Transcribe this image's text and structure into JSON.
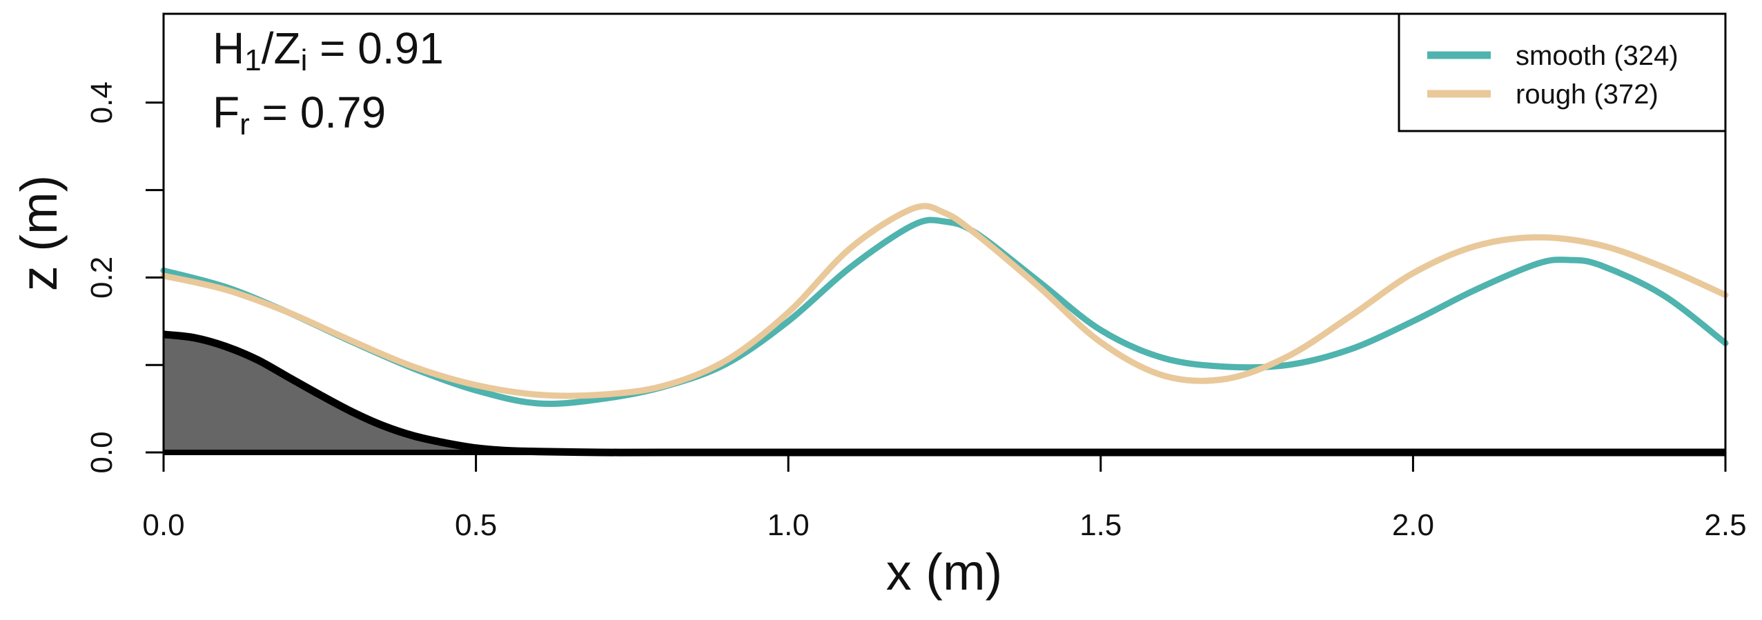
{
  "chart_data": {
    "type": "line",
    "title": "",
    "xlabel": "x (m)",
    "ylabel": "z (m)",
    "xlim": [
      0,
      2.5
    ],
    "ylim": [
      0,
      0.5
    ],
    "x_ticks": [
      0.0,
      0.5,
      1.0,
      1.5,
      2.0,
      2.5
    ],
    "x_tick_labels": [
      "0.0",
      "0.5",
      "1.0",
      "1.5",
      "2.0",
      "2.5"
    ],
    "y_ticks": [
      0.0,
      0.1,
      0.2,
      0.3,
      0.4
    ],
    "y_tick_labels": [
      "0.0",
      "",
      "0.2",
      "",
      "0.4"
    ],
    "grid": false,
    "legend_position": "top-right",
    "annotations": [
      {
        "parts": [
          [
            "H",
            ""
          ],
          [
            "1",
            "sub"
          ],
          [
            "/Z",
            ""
          ],
          [
            "i",
            "sub"
          ],
          [
            " = 0.91",
            ""
          ]
        ]
      },
      {
        "parts": [
          [
            "F",
            ""
          ],
          [
            "r",
            "sub"
          ],
          [
            " = 0.79",
            ""
          ]
        ]
      }
    ],
    "bottom_topography": {
      "color": "#000000",
      "fill": "#666666",
      "points": [
        [
          0.0,
          0.135
        ],
        [
          0.05,
          0.131
        ],
        [
          0.1,
          0.121
        ],
        [
          0.15,
          0.106
        ],
        [
          0.2,
          0.086
        ],
        [
          0.25,
          0.066
        ],
        [
          0.3,
          0.047
        ],
        [
          0.35,
          0.031
        ],
        [
          0.4,
          0.019
        ],
        [
          0.45,
          0.011
        ],
        [
          0.5,
          0.005
        ],
        [
          0.55,
          0.002
        ],
        [
          0.6,
          0.001
        ],
        [
          0.7,
          0.0
        ],
        [
          0.8,
          0.0
        ],
        [
          1.0,
          0.0
        ],
        [
          2.5,
          0.0
        ]
      ]
    },
    "series": [
      {
        "name": "smooth (324)",
        "color": "#4fb3ae",
        "points": [
          [
            0.0,
            0.208
          ],
          [
            0.1,
            0.189
          ],
          [
            0.2,
            0.16
          ],
          [
            0.3,
            0.127
          ],
          [
            0.4,
            0.096
          ],
          [
            0.5,
            0.071
          ],
          [
            0.6,
            0.056
          ],
          [
            0.7,
            0.061
          ],
          [
            0.8,
            0.075
          ],
          [
            0.9,
            0.101
          ],
          [
            1.0,
            0.15
          ],
          [
            1.1,
            0.212
          ],
          [
            1.2,
            0.26
          ],
          [
            1.25,
            0.264
          ],
          [
            1.3,
            0.251
          ],
          [
            1.4,
            0.196
          ],
          [
            1.5,
            0.14
          ],
          [
            1.6,
            0.108
          ],
          [
            1.7,
            0.098
          ],
          [
            1.8,
            0.1
          ],
          [
            1.9,
            0.118
          ],
          [
            2.0,
            0.15
          ],
          [
            2.1,
            0.186
          ],
          [
            2.2,
            0.216
          ],
          [
            2.25,
            0.22
          ],
          [
            2.3,
            0.214
          ],
          [
            2.4,
            0.18
          ],
          [
            2.5,
            0.125
          ]
        ]
      },
      {
        "name": "rough (372)",
        "color": "#e9c89a",
        "points": [
          [
            0.0,
            0.202
          ],
          [
            0.1,
            0.186
          ],
          [
            0.2,
            0.16
          ],
          [
            0.3,
            0.128
          ],
          [
            0.4,
            0.098
          ],
          [
            0.5,
            0.077
          ],
          [
            0.6,
            0.066
          ],
          [
            0.7,
            0.066
          ],
          [
            0.8,
            0.076
          ],
          [
            0.9,
            0.105
          ],
          [
            1.0,
            0.16
          ],
          [
            1.1,
            0.234
          ],
          [
            1.2,
            0.279
          ],
          [
            1.25,
            0.274
          ],
          [
            1.3,
            0.25
          ],
          [
            1.4,
            0.19
          ],
          [
            1.5,
            0.126
          ],
          [
            1.6,
            0.088
          ],
          [
            1.7,
            0.084
          ],
          [
            1.8,
            0.11
          ],
          [
            1.9,
            0.156
          ],
          [
            2.0,
            0.205
          ],
          [
            2.1,
            0.236
          ],
          [
            2.2,
            0.246
          ],
          [
            2.3,
            0.237
          ],
          [
            2.4,
            0.212
          ],
          [
            2.5,
            0.18
          ]
        ]
      }
    ]
  }
}
